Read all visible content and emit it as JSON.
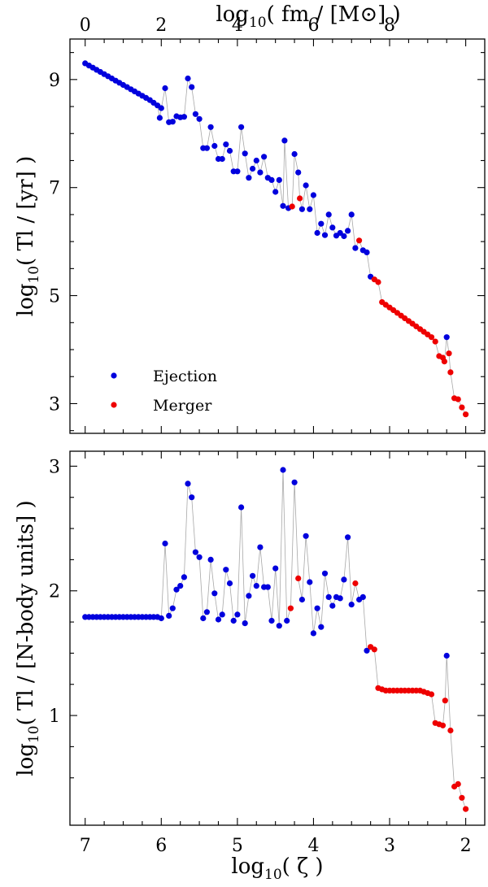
{
  "chart_data": [
    {
      "type": "scatter",
      "xlabel": "log10( ζ )",
      "ylabel": "log10( Tl / [yr] )",
      "top_xlabel": "log10( fm / [M⊙] )",
      "xlim": [
        7.2,
        1.75
      ],
      "ylim": [
        2.45,
        9.75
      ],
      "x_ticks": [],
      "y_ticks": [
        3,
        5,
        7,
        9
      ],
      "top_x_ticks": [
        0,
        2,
        4,
        6,
        8
      ],
      "top_x_positions": [
        7.0,
        6.0,
        5.0,
        4.0,
        3.0
      ],
      "grid": false,
      "legend": {
        "position": "lower-left",
        "entries": [
          {
            "name": "Ejection",
            "color": "#0000dd"
          },
          {
            "name": "Merger",
            "color": "#ee0000"
          }
        ]
      },
      "series": [
        {
          "name": "Ejection",
          "color": "#0000dd",
          "points": [
            [
              7.0,
              9.3
            ],
            [
              6.95,
              9.26
            ],
            [
              6.9,
              9.22
            ],
            [
              6.85,
              9.18
            ],
            [
              6.8,
              9.14
            ],
            [
              6.75,
              9.1
            ],
            [
              6.7,
              9.06
            ],
            [
              6.65,
              9.02
            ],
            [
              6.6,
              8.98
            ],
            [
              6.55,
              8.94
            ],
            [
              6.5,
              8.9
            ],
            [
              6.45,
              8.86
            ],
            [
              6.4,
              8.82
            ],
            [
              6.35,
              8.78
            ],
            [
              6.3,
              8.74
            ],
            [
              6.25,
              8.7
            ],
            [
              6.2,
              8.66
            ],
            [
              6.15,
              8.62
            ],
            [
              6.1,
              8.57
            ],
            [
              6.05,
              8.52
            ],
            [
              6.0,
              8.47
            ],
            [
              6.02,
              8.29
            ],
            [
              5.95,
              8.84
            ],
            [
              5.9,
              8.21
            ],
            [
              5.85,
              8.22
            ],
            [
              5.8,
              8.32
            ],
            [
              5.75,
              8.3
            ],
            [
              5.7,
              8.31
            ],
            [
              5.65,
              9.02
            ],
            [
              5.6,
              8.86
            ],
            [
              5.55,
              8.36
            ],
            [
              5.5,
              8.27
            ],
            [
              5.45,
              7.73
            ],
            [
              5.4,
              7.73
            ],
            [
              5.35,
              8.12
            ],
            [
              5.3,
              7.77
            ],
            [
              5.25,
              7.53
            ],
            [
              5.2,
              7.53
            ],
            [
              5.15,
              7.8
            ],
            [
              5.1,
              7.68
            ],
            [
              5.05,
              7.3
            ],
            [
              5.0,
              7.3
            ],
            [
              4.95,
              8.12
            ],
            [
              4.9,
              7.63
            ],
            [
              4.85,
              7.18
            ],
            [
              4.8,
              7.35
            ],
            [
              4.75,
              7.5
            ],
            [
              4.7,
              7.28
            ],
            [
              4.65,
              7.57
            ],
            [
              4.6,
              7.18
            ],
            [
              4.55,
              7.14
            ],
            [
              4.5,
              6.92
            ],
            [
              4.45,
              7.14
            ],
            [
              4.4,
              6.66
            ],
            [
              4.38,
              7.87
            ],
            [
              4.33,
              6.62
            ],
            [
              4.25,
              7.62
            ],
            [
              4.2,
              7.28
            ],
            [
              4.15,
              6.6
            ],
            [
              4.1,
              7.04
            ],
            [
              4.05,
              6.6
            ],
            [
              4.0,
              6.86
            ],
            [
              3.95,
              6.16
            ],
            [
              3.9,
              6.33
            ],
            [
              3.85,
              6.12
            ],
            [
              3.8,
              6.5
            ],
            [
              3.75,
              6.26
            ],
            [
              3.7,
              6.11
            ],
            [
              3.65,
              6.16
            ],
            [
              3.6,
              6.1
            ],
            [
              3.55,
              6.2
            ],
            [
              3.5,
              6.5
            ],
            [
              3.45,
              5.88
            ],
            [
              3.35,
              5.84
            ],
            [
              3.3,
              5.8
            ],
            [
              3.25,
              5.35
            ]
          ]
        },
        {
          "name": "",
          "color": "#0000dd",
          "points": [
            [
              2.25,
              4.23
            ]
          ]
        },
        {
          "name": "Merger",
          "color": "#ee0000",
          "points": [
            [
              4.28,
              6.65
            ],
            [
              4.18,
              6.8
            ],
            [
              3.4,
              6.02
            ],
            [
              3.2,
              5.3
            ],
            [
              3.15,
              5.25
            ],
            [
              3.1,
              4.88
            ],
            [
              3.05,
              4.83
            ],
            [
              3.0,
              4.78
            ],
            [
              2.95,
              4.73
            ],
            [
              2.9,
              4.68
            ],
            [
              2.85,
              4.63
            ],
            [
              2.8,
              4.58
            ],
            [
              2.75,
              4.53
            ],
            [
              2.7,
              4.48
            ],
            [
              2.65,
              4.43
            ],
            [
              2.6,
              4.38
            ],
            [
              2.55,
              4.33
            ],
            [
              2.5,
              4.28
            ],
            [
              2.45,
              4.23
            ],
            [
              2.4,
              4.15
            ],
            [
              2.35,
              3.88
            ],
            [
              2.3,
              3.85
            ],
            [
              2.28,
              3.78
            ],
            [
              2.22,
              3.93
            ],
            [
              2.2,
              3.58
            ],
            [
              2.15,
              3.1
            ],
            [
              2.1,
              3.08
            ],
            [
              2.05,
              2.93
            ],
            [
              2.0,
              2.8
            ]
          ]
        }
      ]
    },
    {
      "type": "scatter",
      "xlabel": "log10( ζ )",
      "ylabel": "log10( Tl / [N-body units] )",
      "xlim": [
        7.2,
        1.75
      ],
      "ylim": [
        0.12,
        3.12
      ],
      "x_ticks": [
        7,
        6,
        5,
        4,
        3,
        2
      ],
      "y_ticks": [
        1,
        2,
        3
      ],
      "grid": false,
      "series": [
        {
          "name": "Ejection",
          "color": "#0000dd",
          "points": [
            [
              7.0,
              1.79
            ],
            [
              6.95,
              1.79
            ],
            [
              6.9,
              1.79
            ],
            [
              6.85,
              1.79
            ],
            [
              6.8,
              1.79
            ],
            [
              6.75,
              1.79
            ],
            [
              6.7,
              1.79
            ],
            [
              6.65,
              1.79
            ],
            [
              6.6,
              1.79
            ],
            [
              6.55,
              1.79
            ],
            [
              6.5,
              1.79
            ],
            [
              6.45,
              1.79
            ],
            [
              6.4,
              1.79
            ],
            [
              6.35,
              1.79
            ],
            [
              6.3,
              1.79
            ],
            [
              6.25,
              1.79
            ],
            [
              6.2,
              1.79
            ],
            [
              6.15,
              1.79
            ],
            [
              6.1,
              1.79
            ],
            [
              6.05,
              1.79
            ],
            [
              6.0,
              1.78
            ],
            [
              5.95,
              2.38
            ],
            [
              5.9,
              1.8
            ],
            [
              5.85,
              1.86
            ],
            [
              5.8,
              2.01
            ],
            [
              5.75,
              2.04
            ],
            [
              5.7,
              2.11
            ],
            [
              5.65,
              2.86
            ],
            [
              5.6,
              2.75
            ],
            [
              5.55,
              2.31
            ],
            [
              5.5,
              2.27
            ],
            [
              5.45,
              1.78
            ],
            [
              5.4,
              1.83
            ],
            [
              5.35,
              2.25
            ],
            [
              5.3,
              1.98
            ],
            [
              5.25,
              1.77
            ],
            [
              5.2,
              1.81
            ],
            [
              5.15,
              2.17
            ],
            [
              5.1,
              2.06
            ],
            [
              5.05,
              1.76
            ],
            [
              5.0,
              1.81
            ],
            [
              4.95,
              2.67
            ],
            [
              4.9,
              1.74
            ],
            [
              4.85,
              1.96
            ],
            [
              4.8,
              2.12
            ],
            [
              4.75,
              2.04
            ],
            [
              4.7,
              2.35
            ],
            [
              4.65,
              2.03
            ],
            [
              4.6,
              2.03
            ],
            [
              4.55,
              1.76
            ],
            [
              4.5,
              2.18
            ],
            [
              4.45,
              1.72
            ],
            [
              4.4,
              2.97
            ],
            [
              4.35,
              1.76
            ],
            [
              4.25,
              2.87
            ],
            [
              4.15,
              1.93
            ],
            [
              4.1,
              2.44
            ],
            [
              4.05,
              2.07
            ],
            [
              4.0,
              1.66
            ],
            [
              3.95,
              1.86
            ],
            [
              3.9,
              1.71
            ],
            [
              3.85,
              2.14
            ],
            [
              3.8,
              1.95
            ],
            [
              3.75,
              1.88
            ],
            [
              3.7,
              1.95
            ],
            [
              3.65,
              1.94
            ],
            [
              3.6,
              2.09
            ],
            [
              3.55,
              2.43
            ],
            [
              3.5,
              1.89
            ],
            [
              3.4,
              1.93
            ],
            [
              3.35,
              1.95
            ],
            [
              3.3,
              1.52
            ]
          ]
        },
        {
          "name": "",
          "color": "#0000dd",
          "points": [
            [
              2.25,
              1.48
            ]
          ]
        },
        {
          "name": "Merger",
          "color": "#ee0000",
          "points": [
            [
              4.3,
              1.86
            ],
            [
              4.2,
              2.1
            ],
            [
              3.45,
              2.06
            ],
            [
              3.25,
              1.55
            ],
            [
              3.2,
              1.53
            ],
            [
              3.15,
              1.22
            ],
            [
              3.1,
              1.21
            ],
            [
              3.05,
              1.2
            ],
            [
              3.0,
              1.2
            ],
            [
              2.95,
              1.2
            ],
            [
              2.9,
              1.2
            ],
            [
              2.85,
              1.2
            ],
            [
              2.8,
              1.2
            ],
            [
              2.75,
              1.2
            ],
            [
              2.7,
              1.2
            ],
            [
              2.65,
              1.2
            ],
            [
              2.6,
              1.2
            ],
            [
              2.55,
              1.19
            ],
            [
              2.5,
              1.18
            ],
            [
              2.45,
              1.17
            ],
            [
              2.4,
              0.94
            ],
            [
              2.35,
              0.93
            ],
            [
              2.3,
              0.92
            ],
            [
              2.27,
              1.12
            ],
            [
              2.2,
              0.88
            ],
            [
              2.15,
              0.43
            ],
            [
              2.1,
              0.45
            ],
            [
              2.05,
              0.34
            ],
            [
              2.0,
              0.25
            ]
          ]
        }
      ]
    }
  ]
}
